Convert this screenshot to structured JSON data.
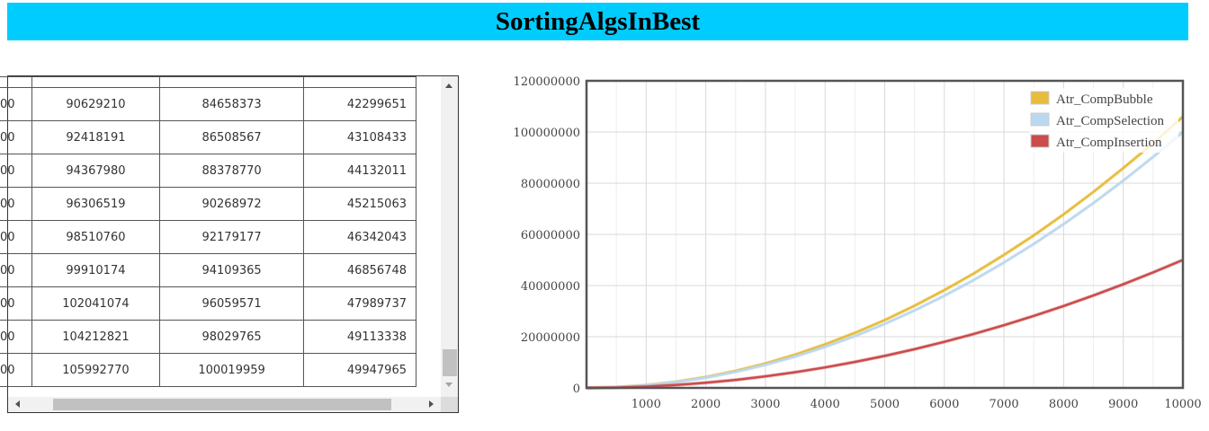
{
  "header": {
    "title": "SortingAlgsInBest",
    "bg_color": "#00ccff"
  },
  "table": {
    "rows": [
      {
        "c0": "00",
        "c1": "90629210",
        "c2": "84658373",
        "c3": "42299651"
      },
      {
        "c0": "00",
        "c1": "92418191",
        "c2": "86508567",
        "c3": "43108433"
      },
      {
        "c0": "00",
        "c1": "94367980",
        "c2": "88378770",
        "c3": "44132011"
      },
      {
        "c0": "00",
        "c1": "96306519",
        "c2": "90268972",
        "c3": "45215063"
      },
      {
        "c0": "00",
        "c1": "98510760",
        "c2": "92179177",
        "c3": "46342043"
      },
      {
        "c0": "00",
        "c1": "99910174",
        "c2": "94109365",
        "c3": "46856748"
      },
      {
        "c0": "00",
        "c1": "102041074",
        "c2": "96059571",
        "c3": "47989737"
      },
      {
        "c0": "00",
        "c1": "104212821",
        "c2": "98029765",
        "c3": "49113338"
      },
      {
        "c0": "00",
        "c1": "105992770",
        "c2": "100019959",
        "c3": "49947965"
      }
    ]
  },
  "chart_data": {
    "type": "line",
    "title": "",
    "xlabel": "",
    "ylabel": "",
    "xlim": [
      0,
      10000
    ],
    "ylim": [
      0,
      120000000
    ],
    "x_ticks": [
      1000,
      2000,
      3000,
      4000,
      5000,
      6000,
      7000,
      8000,
      9000,
      10000
    ],
    "y_ticks": [
      0,
      20000000,
      40000000,
      60000000,
      80000000,
      100000000,
      120000000
    ],
    "x_tick_labels": [
      "1000",
      "2000",
      "3000",
      "4000",
      "5000",
      "6000",
      "7000",
      "8000",
      "9000",
      "10000"
    ],
    "y_tick_labels": [
      "0",
      "20000000",
      "40000000",
      "60000000",
      "80000000",
      "100000000",
      "120000000"
    ],
    "grid": true,
    "legend_position": "top-right",
    "x": [
      0,
      500,
      1000,
      1500,
      2000,
      2500,
      3000,
      3500,
      4000,
      4500,
      5000,
      5500,
      6000,
      6500,
      7000,
      7500,
      8000,
      8500,
      9000,
      9500,
      10000
    ],
    "series": [
      {
        "name": "Atr_CompBubble",
        "color": "#e8bc3c",
        "values": [
          0,
          265000,
          1060000,
          2390000,
          4240000,
          6630000,
          9540000,
          13000000,
          17000000,
          21500000,
          26500000,
          32100000,
          38200000,
          44800000,
          52000000,
          59600000,
          67800000,
          76600000,
          85900000,
          95600000,
          106000000
        ]
      },
      {
        "name": "Atr_CompSelection",
        "color": "#bcd8ef",
        "values": [
          0,
          250000,
          1000000,
          2250000,
          4000000,
          6250000,
          9000000,
          12250000,
          16000000,
          20250000,
          25000000,
          30250000,
          36000000,
          42250000,
          49000000,
          56250000,
          64000000,
          72250000,
          81000000,
          90250000,
          100000000
        ]
      },
      {
        "name": "Atr_CompInsertion",
        "color": "#cc4b4b",
        "values": [
          0,
          125000,
          500000,
          1125000,
          2000000,
          3125000,
          4500000,
          6125000,
          8000000,
          10125000,
          12500000,
          15125000,
          18000000,
          21125000,
          24500000,
          28125000,
          32000000,
          36125000,
          40500000,
          45125000,
          50000000
        ]
      }
    ]
  }
}
